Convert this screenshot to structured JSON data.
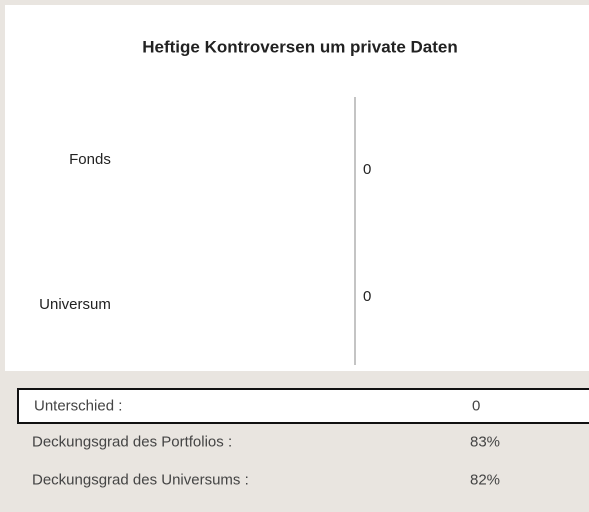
{
  "chart_data": {
    "type": "bar",
    "title": "Heftige Kontroversen um private Daten",
    "categories": [
      "Fonds",
      "Universum"
    ],
    "values": [
      0,
      0
    ],
    "color": "#4472c4"
  },
  "table": {
    "rows": [
      [
        "Unterschied :",
        "0"
      ],
      [
        "Deckungsgrad des Portfolios :",
        "83%"
      ],
      [
        "Deckungsgrad des Universums :",
        "82%"
      ]
    ]
  }
}
